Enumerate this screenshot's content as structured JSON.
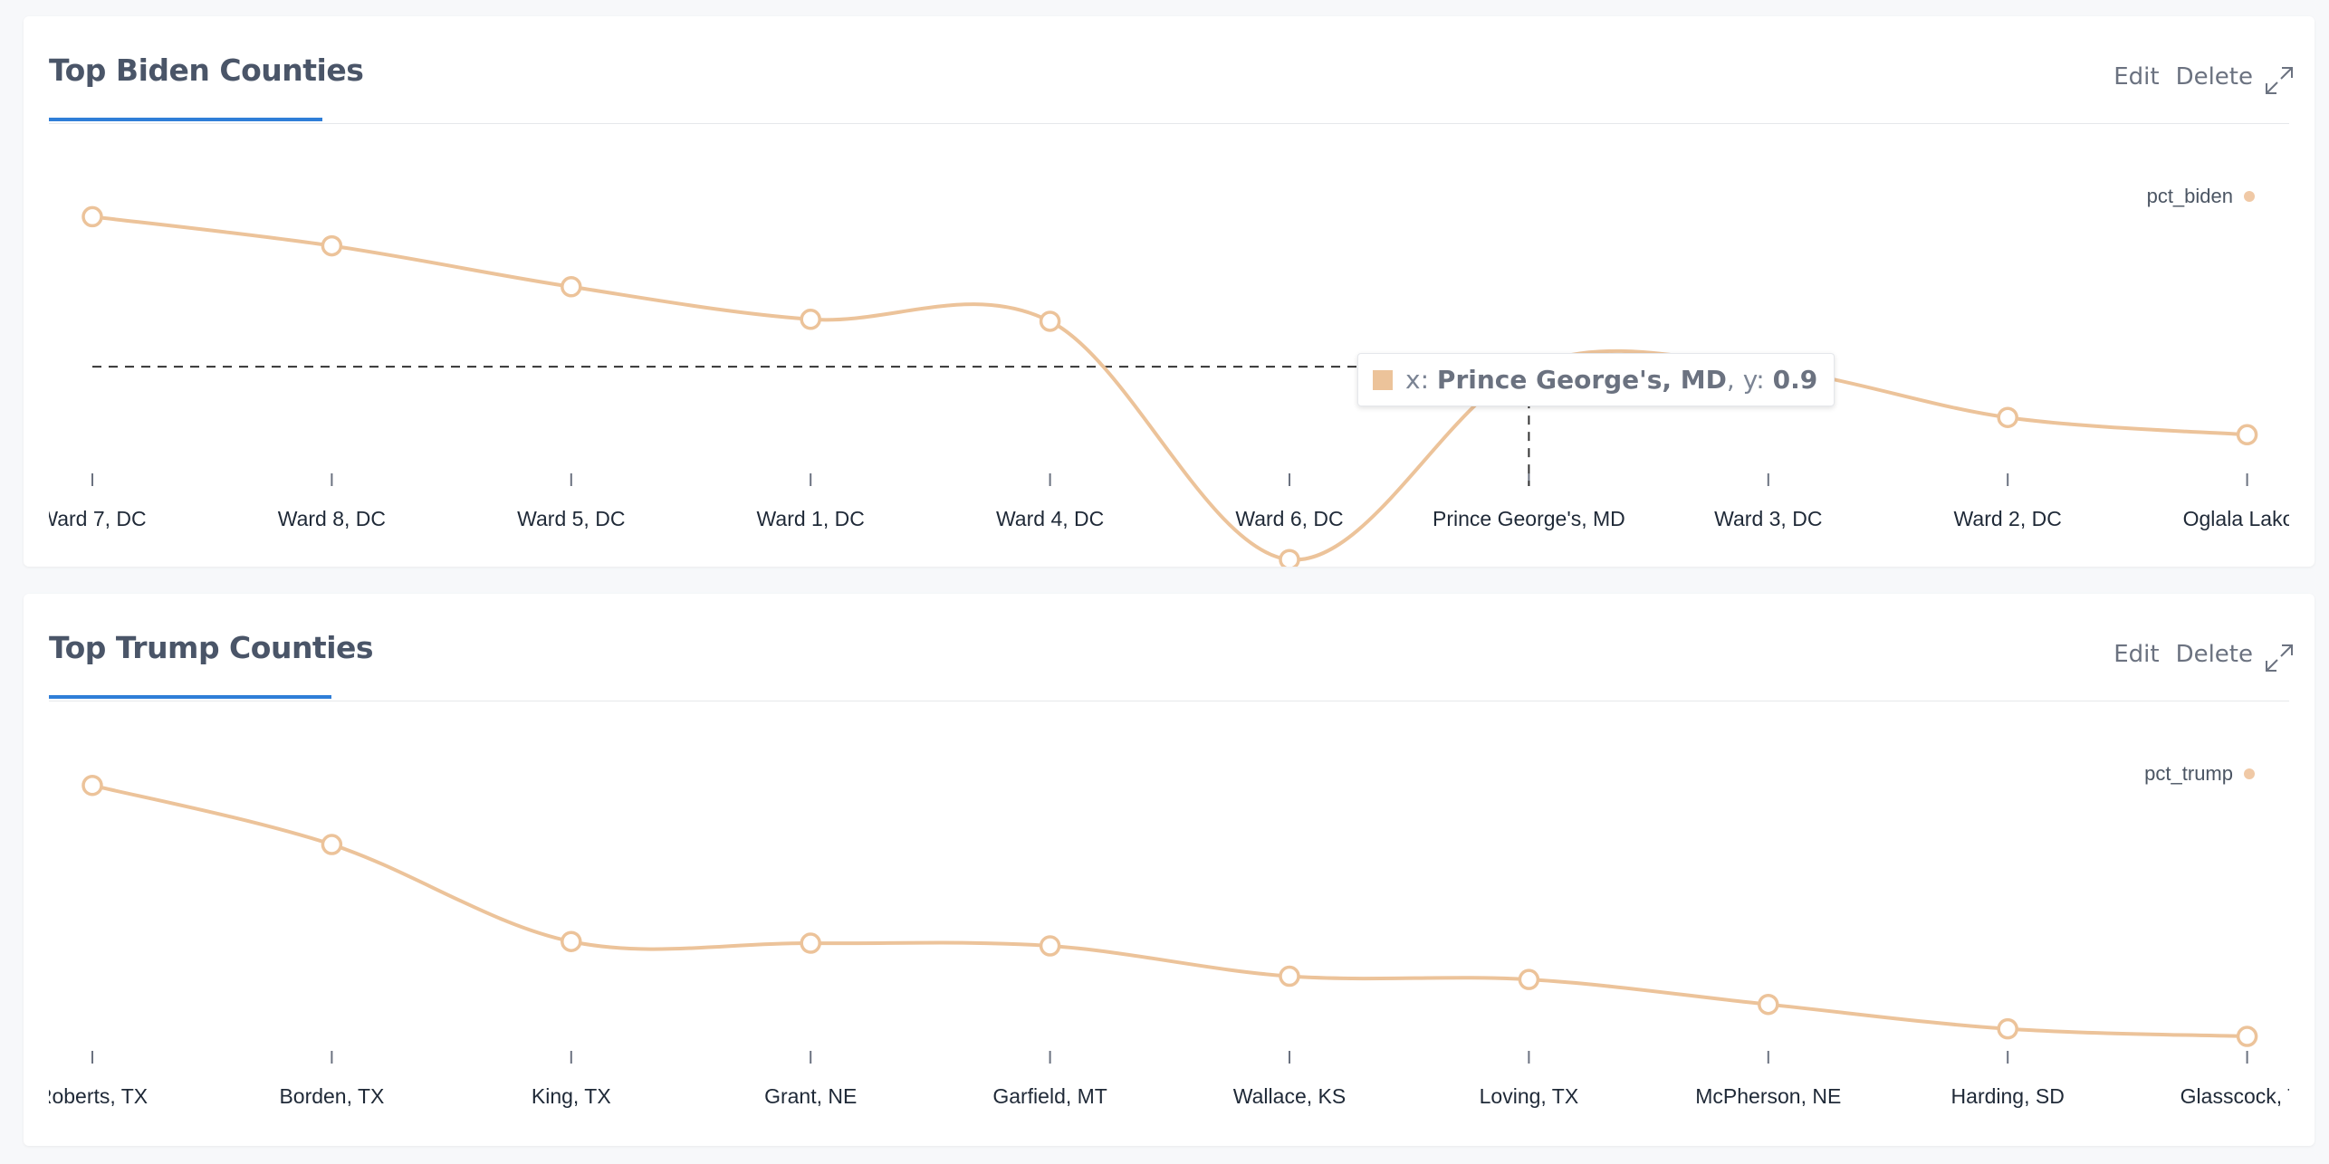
{
  "colors": {
    "series": "#ecc39a",
    "accent": "#2f7ed8",
    "title": "#4a5568"
  },
  "icons": {
    "expand": "expand-icon"
  },
  "cards": [
    {
      "title": "Top Biden Counties",
      "edit_label": "Edit",
      "delete_label": "Delete",
      "legend_label": "pct_biden",
      "tooltip": {
        "x_prefix": "x:",
        "x_value": "Prince George's, MD",
        "y_prefix": ", y:",
        "y_value": "0.9"
      }
    },
    {
      "title": "Top Trump Counties",
      "edit_label": "Edit",
      "delete_label": "Delete",
      "legend_label": "pct_trump"
    }
  ],
  "chart_data": [
    {
      "type": "line",
      "title": "Top Biden Counties",
      "categories": [
        "Ward 7, DC",
        "Ward 8, DC",
        "Ward 5, DC",
        "Ward 1, DC",
        "Ward 4, DC",
        "Ward 6, DC",
        "Prince George's, MD",
        "Ward 3, DC",
        "Ward 2, DC",
        "Oglala Lakota"
      ],
      "series": [
        {
          "name": "pct_biden",
          "values": [
            0.9304,
            0.9245,
            0.9162,
            0.9096,
            0.9092,
            0.8609,
            0.9,
            0.8996,
            0.8897,
            0.8862
          ]
        }
      ],
      "ylim": [
        0.878,
        0.938
      ],
      "highlight_index": 6,
      "legend": "top-right",
      "grid": false
    },
    {
      "type": "line",
      "title": "Top Trump Counties",
      "categories": [
        "Roberts, TX",
        "Borden, TX",
        "King, TX",
        "Grant, NE",
        "Garfield, MT",
        "Wallace, KS",
        "Loving, TX",
        "McPherson, NE",
        "Harding, SD",
        "Glasscock, TX"
      ],
      "series": [
        {
          "name": "pct_trump",
          "values": [
            0.9618,
            0.9509,
            0.933,
            0.9327,
            0.9322,
            0.9266,
            0.926,
            0.9214,
            0.9169,
            0.9155
          ]
        }
      ],
      "ylim": [
        0.9125,
        0.9671
      ],
      "legend": "top-right",
      "grid": false
    }
  ]
}
